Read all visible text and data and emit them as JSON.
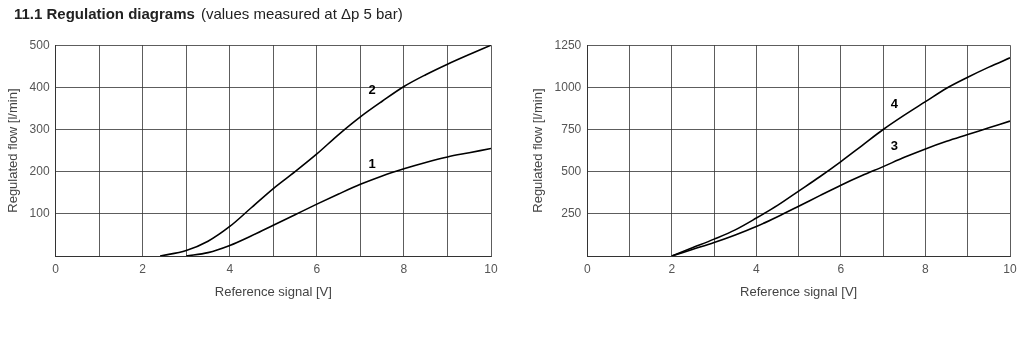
{
  "chart_data": [
    {
      "type": "line",
      "title": "11.1 Regulation diagrams",
      "subtitle": "(values measured at Δp 5 bar)",
      "xlabel": "Reference signal [V]",
      "ylabel": "Regulated flow [l/min]",
      "xlim": [
        0,
        10
      ],
      "ylim": [
        0,
        500
      ],
      "xticks": [
        0,
        {
          "value": 1,
          "label": null
        },
        2,
        {
          "value": 3,
          "label": null
        },
        4,
        {
          "value": 5,
          "label": null
        },
        6,
        {
          "value": 7,
          "label": null
        },
        8,
        {
          "value": 9,
          "label": null
        },
        10
      ],
      "yticks": [
        100,
        200,
        300,
        400,
        500
      ],
      "grid": true,
      "legend": false,
      "marker": "none",
      "line_style": "solid",
      "series": [
        {
          "name": "1",
          "color": "#000000",
          "x": [
            3,
            3.5,
            4,
            4.5,
            5,
            5.5,
            6,
            6.5,
            7,
            7.5,
            8,
            8.5,
            9,
            9.5,
            10
          ],
          "values": [
            0,
            8,
            25,
            48,
            73,
            98,
            123,
            147,
            170,
            190,
            207,
            222,
            235,
            245,
            255
          ]
        },
        {
          "name": "2",
          "color": "#000000",
          "x": [
            2.4,
            3,
            3.5,
            4,
            4.5,
            5,
            5.5,
            6,
            6.5,
            7,
            7.5,
            8,
            8.5,
            9,
            9.5,
            10
          ],
          "values": [
            0,
            13,
            35,
            70,
            115,
            160,
            200,
            242,
            288,
            330,
            367,
            402,
            430,
            455,
            478,
            500
          ]
        }
      ]
    },
    {
      "type": "line",
      "xlabel": "Reference signal [V]",
      "ylabel": "Regulated flow [l/min]",
      "xlim": [
        0,
        10
      ],
      "ylim": [
        0,
        1250
      ],
      "xticks": [
        0,
        {
          "value": 1,
          "label": null
        },
        2,
        {
          "value": 3,
          "label": null
        },
        4,
        {
          "value": 5,
          "label": null
        },
        6,
        {
          "value": 7,
          "label": null
        },
        8,
        {
          "value": 9,
          "label": null
        },
        10
      ],
      "yticks": [
        250,
        500,
        750,
        1000,
        1250
      ],
      "grid": true,
      "legend": false,
      "marker": "none",
      "line_style": "solid",
      "series": [
        {
          "name": "3",
          "color": "#000000",
          "x": [
            2,
            2.5,
            3,
            3.5,
            4,
            4.5,
            5,
            5.5,
            6,
            6.5,
            7,
            7.5,
            8,
            8.5,
            9,
            9.5,
            10
          ],
          "values": [
            0,
            40,
            80,
            125,
            175,
            233,
            295,
            358,
            420,
            477,
            530,
            585,
            635,
            680,
            720,
            760,
            800
          ]
        },
        {
          "name": "4",
          "color": "#000000",
          "x": [
            2,
            2.5,
            3,
            3.5,
            4,
            4.5,
            5,
            5.5,
            6,
            6.5,
            7,
            7.5,
            8,
            8.5,
            9,
            9.5,
            10
          ],
          "values": [
            0,
            50,
            100,
            155,
            225,
            300,
            385,
            470,
            560,
            655,
            750,
            835,
            915,
            995,
            1060,
            1120,
            1175
          ]
        }
      ]
    }
  ]
}
